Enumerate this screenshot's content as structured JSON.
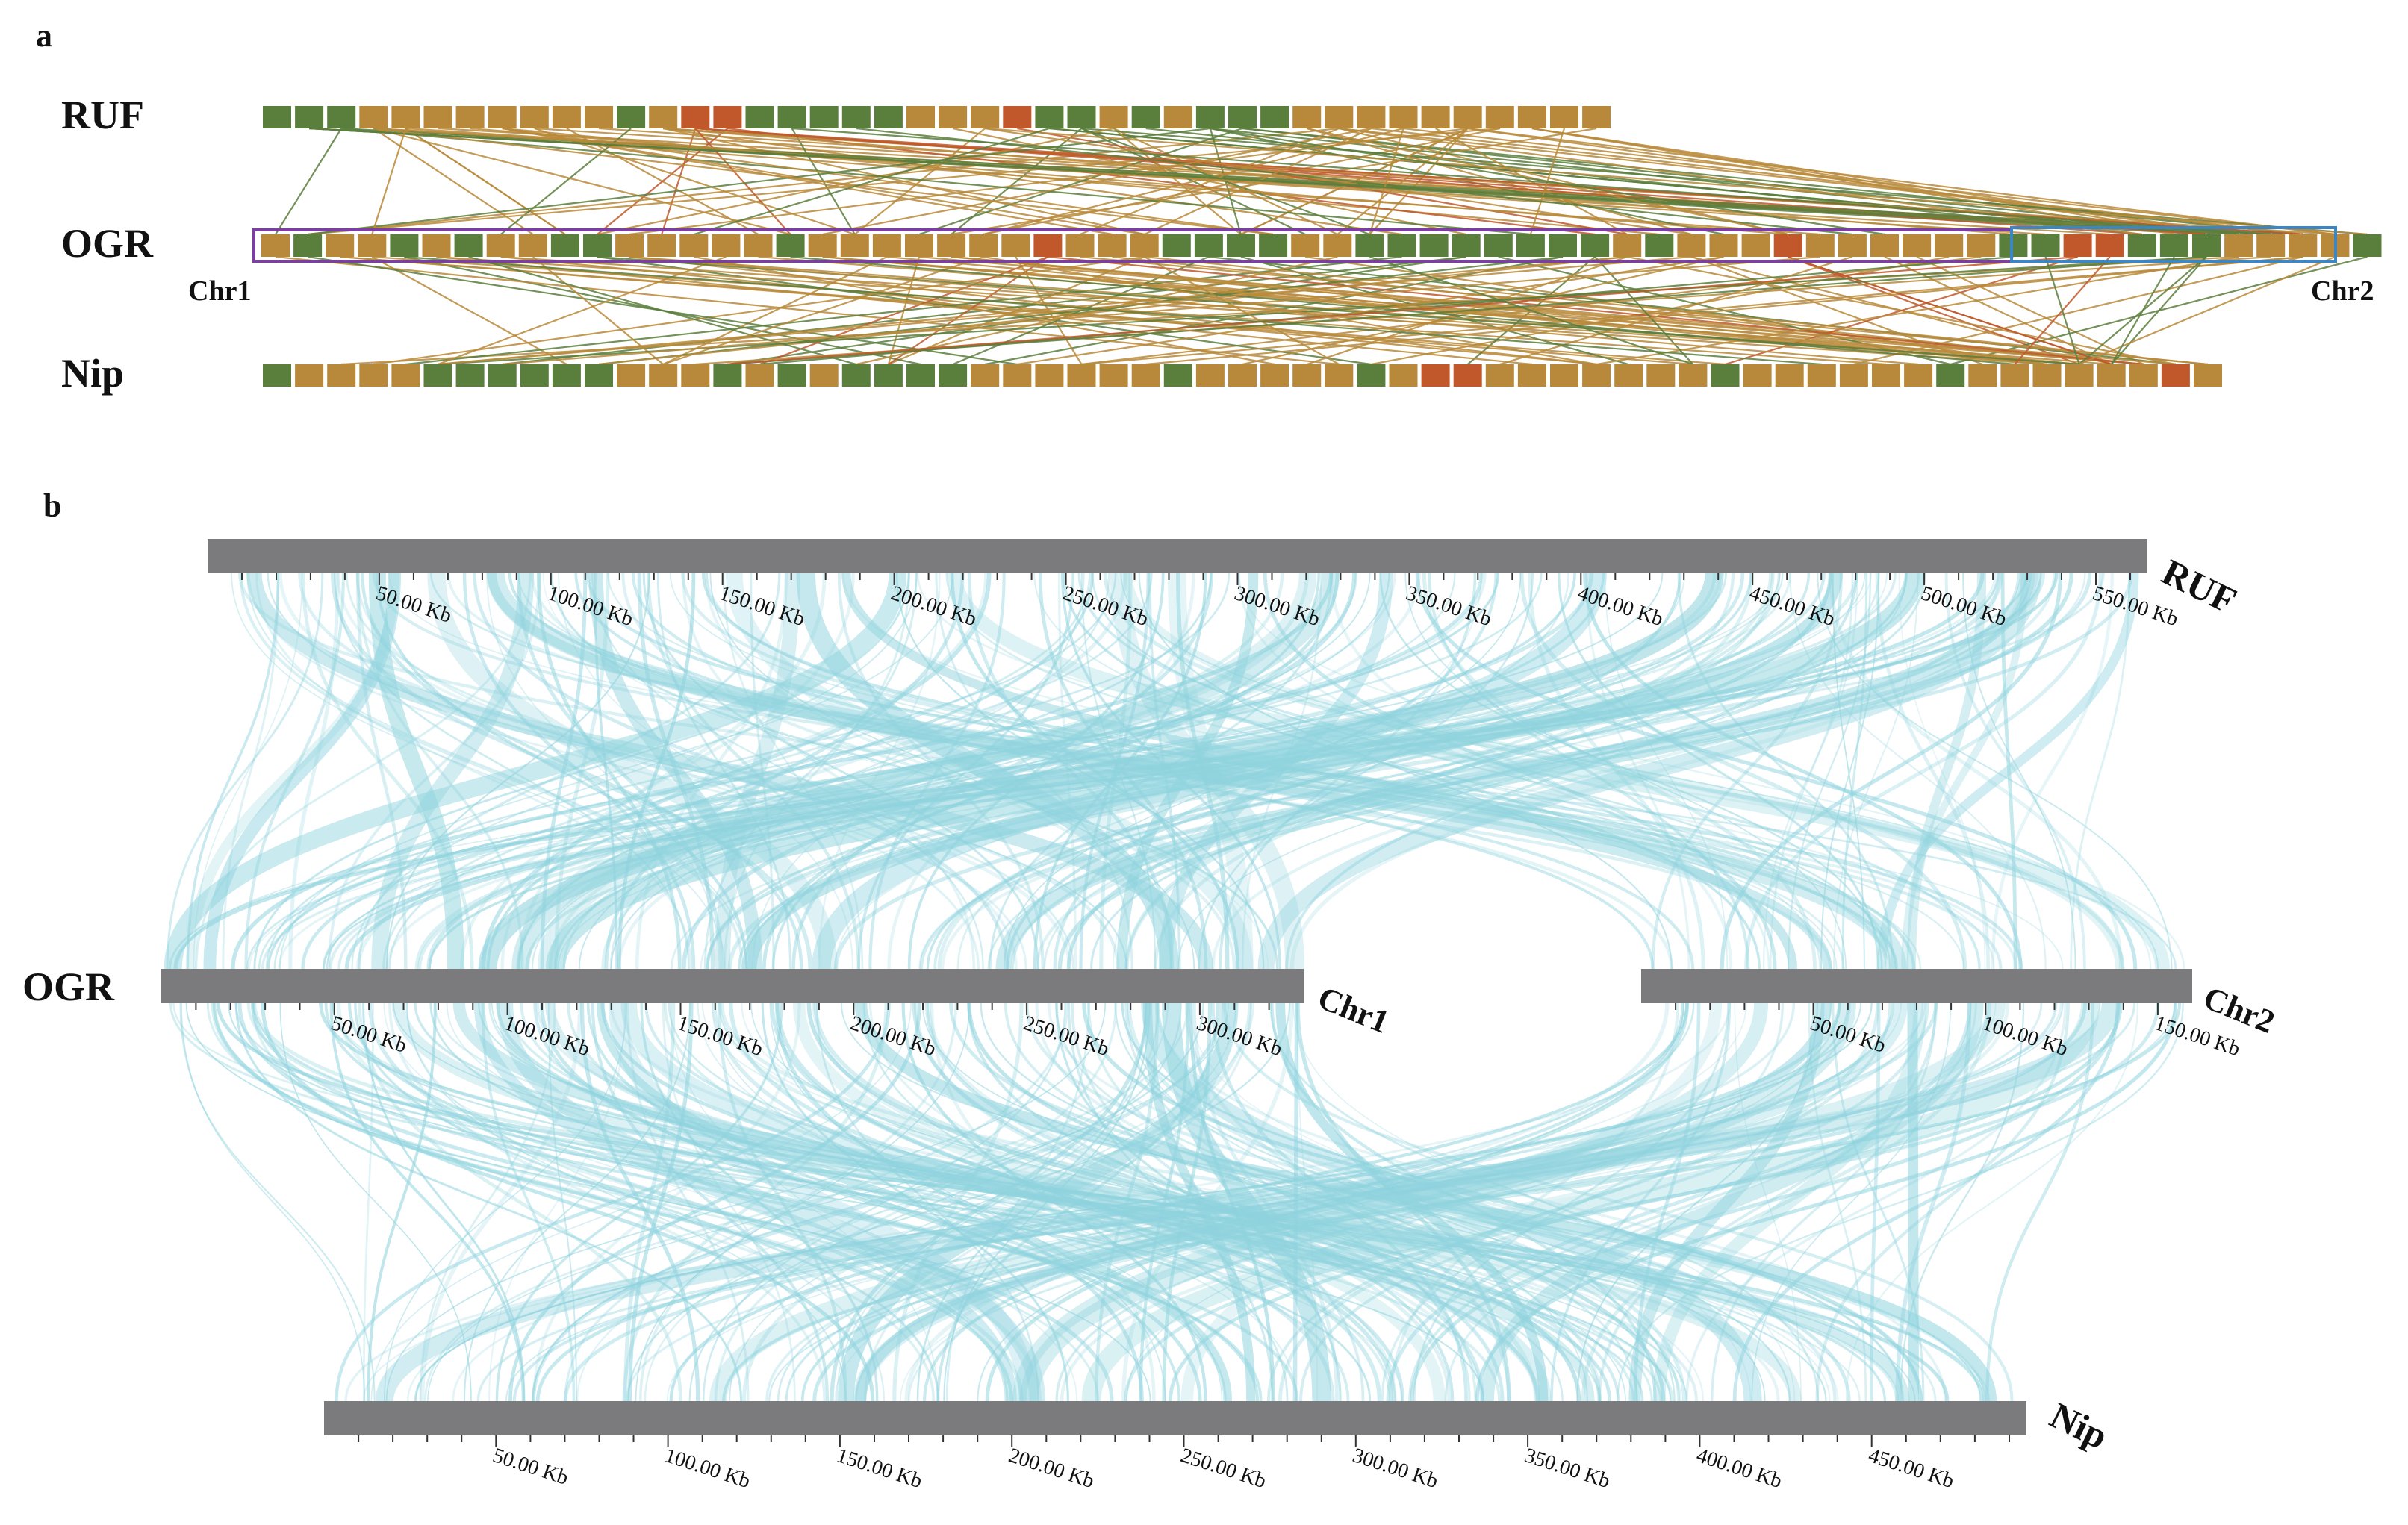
{
  "colors": {
    "green": "#5a7e3c",
    "tan": "#b8893a",
    "red": "#c0582c",
    "purple_box": "#7b3fa0",
    "blue_box": "#3a86c6",
    "bar_gray": "#7b7b7d",
    "ribbon": "#8fd3de"
  },
  "panel_a": {
    "label": "a",
    "genomes": [
      {
        "name": "RUF",
        "blocks": "GGGTTTTTTTTGTRRGGGGGTTTRGGTGTGGGTTTTTTTTTT"
      },
      {
        "name": "OGR",
        "blocks": "TGTTGTGTTGGTTTTTGTTTTTTTRTTTGGGGTTGGGGGGGGTGTTTRTTTTTTGGRRGGGTTTTG"
      },
      {
        "name": "Nip",
        "blocks": "GTTTTGGGGGGTTTGTGTGGGGTTTTTTGTTTTTGTRRTTTTTTTGTTTTTTGTTTTTTRT"
      }
    ],
    "chromosomes": [
      "Chr1",
      "Chr2"
    ]
  },
  "panel_b": {
    "label": "b",
    "genomes": [
      {
        "name": "RUF",
        "bars": [
          {
            "length_kb": 565,
            "ticks": [
              "50.00 Kb",
              "100.00 Kb",
              "150.00 Kb",
              "200.00 Kb",
              "250.00 Kb",
              "300.00 Kb",
              "350.00 Kb",
              "400.00 Kb",
              "450.00 Kb",
              "500.00 Kb",
              "550.00 Kb"
            ]
          }
        ]
      },
      {
        "name": "OGR",
        "bars": [
          {
            "chr": "Chr1",
            "length_kb": 330,
            "ticks": [
              "50.00 Kb",
              "100.00 Kb",
              "150.00 Kb",
              "200.00 Kb",
              "250.00 Kb",
              "300.00 Kb"
            ]
          },
          {
            "chr": "Chr2",
            "length_kb": 160,
            "ticks": [
              "50.00 Kb",
              "100.00 Kb",
              "150.00 Kb"
            ]
          }
        ]
      },
      {
        "name": "Nip",
        "bars": [
          {
            "length_kb": 495,
            "ticks": [
              "50.00 Kb",
              "100.00 Kb",
              "150.00 Kb",
              "200.00 Kb",
              "250.00 Kb",
              "300.00 Kb",
              "350.00 Kb",
              "400.00 Kb",
              "450.00 Kb"
            ]
          }
        ]
      }
    ]
  }
}
